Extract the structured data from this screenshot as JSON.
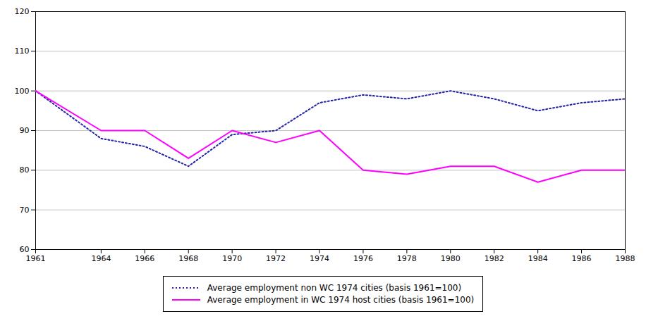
{
  "chart_data": {
    "type": "line",
    "x": [
      1961,
      1964,
      1966,
      1968,
      1970,
      1972,
      1974,
      1976,
      1978,
      1980,
      1982,
      1984,
      1986,
      1988
    ],
    "series": [
      {
        "name": "Average employment non WC 1974  cities (basis 1961=100)",
        "color": "#2222AA",
        "line_style": "dotted",
        "values": [
          100,
          88,
          86,
          81,
          89,
          90,
          97,
          99,
          98,
          100,
          98,
          95,
          97,
          98
        ]
      },
      {
        "name": "Average employment in WC 1974  host cities (basis 1961=100)",
        "color": "#FF00FF",
        "line_style": "solid",
        "values": [
          100,
          90,
          90,
          83,
          90,
          87,
          90,
          80,
          79,
          81,
          81,
          77,
          80,
          80
        ]
      }
    ],
    "xlim": [
      1961,
      1988
    ],
    "xticks": [
      1961,
      1964,
      1966,
      1968,
      1970,
      1972,
      1974,
      1976,
      1978,
      1980,
      1982,
      1984,
      1986,
      1988
    ],
    "ylim": [
      60,
      120
    ],
    "yticks": [
      60,
      70,
      80,
      90,
      100,
      110,
      120
    ],
    "grid": true,
    "legend": "bottom"
  }
}
